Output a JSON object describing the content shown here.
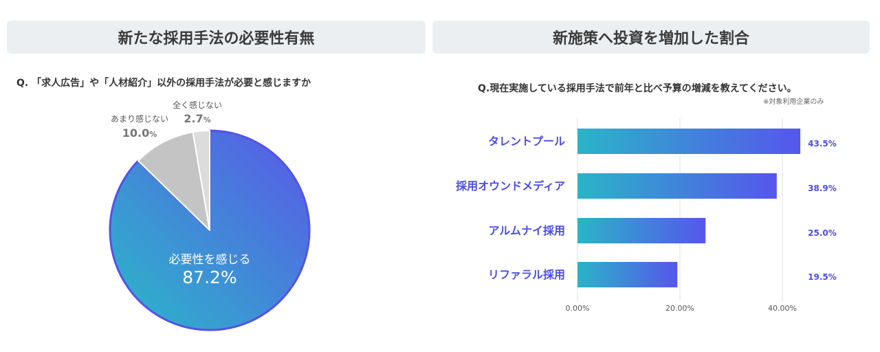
{
  "left": {
    "title": "新たな採用手法の必要性有無",
    "question": "Q. 「求人広告」や「人材紹介」以外の採用手法が必要と感じますか"
  },
  "right": {
    "title": "新施策へ投資を増加した割合",
    "question": "Q.現在実施している採用手法で前年と比べ予算の増減を教えてください。",
    "note": "※対象利用企業のみ"
  },
  "chart_data": [
    {
      "type": "pie",
      "slices": [
        {
          "label": "必要性を感じる",
          "value": 87.2,
          "value_text": "87.2%"
        },
        {
          "label": "あまり感じない",
          "value": 10.0,
          "value_text": "10.0%"
        },
        {
          "label": "全く感じない",
          "value": 2.7,
          "value_text": "2.7%"
        }
      ],
      "colors": [
        "#3a8fd4",
        "#c4c4c4",
        "#dcdcdc"
      ]
    },
    {
      "type": "bar",
      "orientation": "horizontal",
      "categories": [
        "タレントプール",
        "採用オウンドメディア",
        "アルムナイ採用",
        "リファラル採用"
      ],
      "values": [
        43.5,
        38.9,
        25.0,
        19.5
      ],
      "value_labels": [
        "43.5%",
        "38.9%",
        "25.0%",
        "19.5%"
      ],
      "xlim": [
        0,
        43.5
      ],
      "xticks": [
        "0.00%",
        "20.00%",
        "40.00%"
      ],
      "xtick_values": [
        0,
        20,
        40
      ],
      "grid": true
    }
  ]
}
